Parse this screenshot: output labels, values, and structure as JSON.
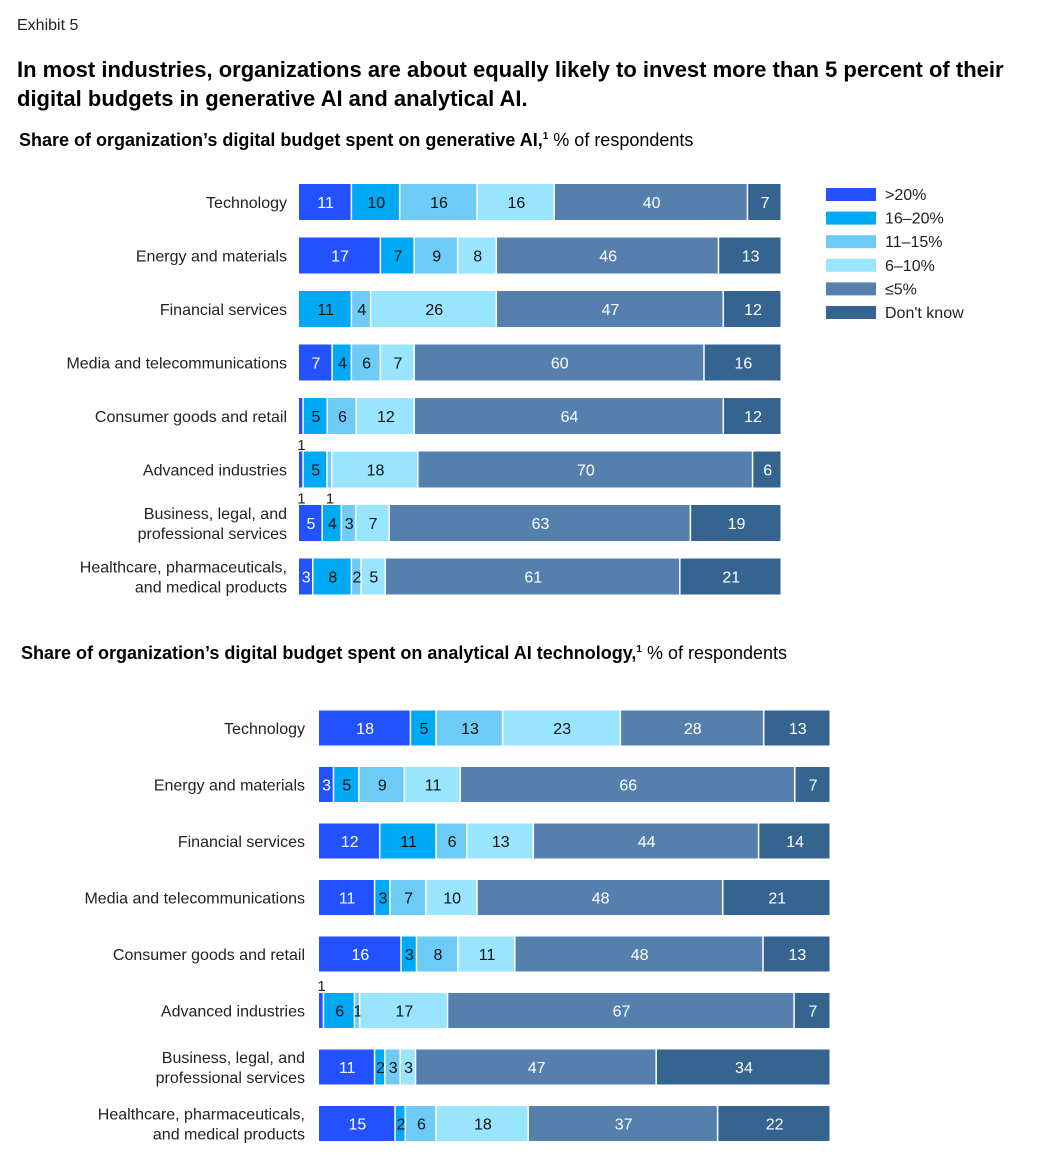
{
  "exhibit_label": "Exhibit 5",
  "headline": "In most industries, organizations are about equally likely to invest more than 5 percent of their digital budgets in generative AI and analytical AI.",
  "colors": {
    ">20%": "#2251ff",
    "16–20%": "#00a9f4",
    "11–15%": "#6ecbf5",
    "6–10%": "#99e4ff",
    "≤5%": "#5580ad",
    "Don't know": "#34648f"
  },
  "chart_data": [
    {
      "type": "bar",
      "orientation": "horizontal",
      "stacked": true,
      "title_bold": "Share of organization’s digital budget spent on generative AI,",
      "title_sup": "1",
      "title_rest": " % of respondents",
      "legend": {
        "placement": "right",
        "entries": [
          ">20%",
          "16–20%",
          "11–15%",
          "6–10%",
          "≤5%",
          "Don't know"
        ]
      },
      "categories": [
        "Technology",
        "Energy and materials",
        "Financial services",
        "Media and telecommunications",
        "Consumer goods and retail",
        "Advanced industries",
        "Business, legal, and\nprofessional services",
        "Healthcare, pharmaceuticals,\nand medical products"
      ],
      "series": [
        {
          "name": ">20%",
          "values": [
            11,
            17,
            0,
            7,
            1,
            1,
            5,
            3
          ]
        },
        {
          "name": "16–20%",
          "values": [
            10,
            7,
            11,
            4,
            5,
            5,
            4,
            8
          ]
        },
        {
          "name": "11–15%",
          "values": [
            16,
            9,
            4,
            6,
            6,
            1,
            3,
            2
          ]
        },
        {
          "name": "6–10%",
          "values": [
            16,
            8,
            26,
            7,
            12,
            18,
            7,
            5
          ]
        },
        {
          "name": "≤5%",
          "values": [
            40,
            46,
            47,
            60,
            64,
            70,
            63,
            61
          ]
        },
        {
          "name": "Don't know",
          "values": [
            7,
            13,
            12,
            16,
            12,
            6,
            19,
            21
          ]
        }
      ],
      "unit": "% of respondents"
    },
    {
      "type": "bar",
      "orientation": "horizontal",
      "stacked": true,
      "title_bold": "Share of organization’s digital budget spent on analytical AI technology,",
      "title_sup": "1",
      "title_rest": " % of respondents",
      "categories": [
        "Technology",
        "Energy and materials",
        "Financial services",
        "Media and telecommunications",
        "Consumer goods and retail",
        "Advanced industries",
        "Business, legal, and\nprofessional services",
        "Healthcare, pharmaceuticals,\nand medical products"
      ],
      "series": [
        {
          "name": ">20%",
          "values": [
            18,
            3,
            12,
            11,
            16,
            1,
            11,
            15
          ]
        },
        {
          "name": "16–20%",
          "values": [
            5,
            5,
            11,
            3,
            3,
            6,
            2,
            2
          ]
        },
        {
          "name": "11–15%",
          "values": [
            13,
            9,
            6,
            7,
            8,
            1,
            3,
            6
          ]
        },
        {
          "name": "6–10%",
          "values": [
            23,
            11,
            13,
            10,
            11,
            17,
            3,
            18
          ]
        },
        {
          "name": "≤5%",
          "values": [
            28,
            66,
            44,
            48,
            48,
            67,
            47,
            37
          ]
        },
        {
          "name": "Don't know",
          "values": [
            13,
            7,
            14,
            21,
            13,
            7,
            34,
            22
          ]
        }
      ],
      "unit": "% of respondents"
    }
  ]
}
